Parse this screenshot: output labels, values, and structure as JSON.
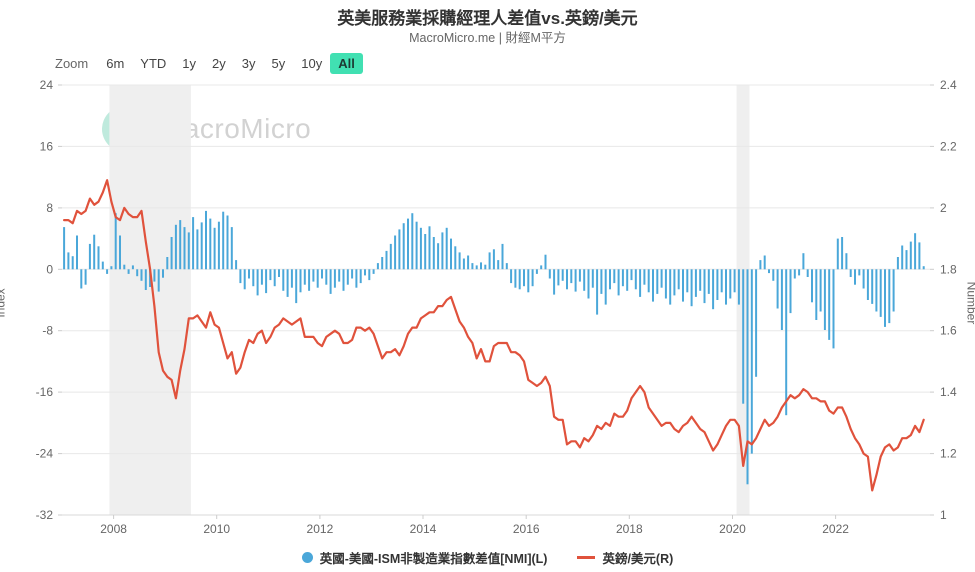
{
  "header": {
    "title": "英美服務業採購經理人差值vs.英鎊/美元",
    "subtitle": "MacroMicro.me | 財經M平方"
  },
  "toolbar": {
    "zoom_label": "Zoom",
    "ranges": [
      "6m",
      "YTD",
      "1y",
      "2y",
      "3y",
      "5y",
      "10y",
      "All"
    ],
    "active_range": "All"
  },
  "watermark": {
    "brand": "MacroMicro"
  },
  "colors": {
    "bars": "#4aa7d9",
    "line": "#e0523c",
    "active_button": "#41e0b2",
    "recession_band": "#efefef",
    "gridline": "#e8e8e8",
    "axis_line": "#d9d9d9",
    "tick_text": "#666666",
    "title_text": "#333333"
  },
  "legend": {
    "items": [
      {
        "label": "英國-美國-ISM非製造業指數差值[NMI](L)",
        "marker": "circle",
        "color": "#4aa7d9"
      },
      {
        "label": "英鎊/美元(R)",
        "marker": "line",
        "color": "#e0523c"
      }
    ]
  },
  "chart_data": {
    "type": "bar+line combo",
    "x_start": 2007.0,
    "x_end": 2023.83,
    "x_ticks": [
      2008,
      2010,
      2012,
      2014,
      2016,
      2018,
      2020,
      2022
    ],
    "y_left": {
      "title": "Index",
      "min": -32,
      "max": 24,
      "ticks": [
        24,
        16,
        8,
        0,
        -8,
        -16,
        -24,
        -32
      ]
    },
    "y_right": {
      "title": "Number",
      "min": 1,
      "max": 2.4,
      "ticks": [
        "2.4",
        "2.2",
        "2",
        "1.8",
        "1.6",
        "1.4",
        "1.2",
        "1"
      ]
    },
    "grid": "horizontal",
    "legend_position": "bottom",
    "recession_bands": [
      [
        2007.92,
        2009.5
      ],
      [
        2020.08,
        2020.33
      ]
    ],
    "start": "2007-01",
    "frequency": "monthly",
    "series": [
      {
        "name": "英國-美國-ISM非製造業指數差值[NMI](L)",
        "type": "bar",
        "axis": "left",
        "color": "#4aa7d9",
        "values": [
          5.5,
          2.2,
          1.7,
          4.4,
          -2.5,
          -2.0,
          3.3,
          4.5,
          3.0,
          1.0,
          -0.6,
          0.4,
          7.3,
          4.4,
          0.6,
          -0.6,
          0.5,
          -0.9,
          -1.5,
          -2.7,
          -2.3,
          -1.6,
          -2.9,
          -1.1,
          1.6,
          4.2,
          5.8,
          6.4,
          5.5,
          4.8,
          6.8,
          5.2,
          6.1,
          7.6,
          6.6,
          5.4,
          6.2,
          7.5,
          7.0,
          5.5,
          1.2,
          -1.8,
          -2.6,
          -1.2,
          -2.2,
          -3.4,
          -2.0,
          -3.1,
          -1.4,
          -2.2,
          -1.0,
          -2.8,
          -3.6,
          -2.4,
          -4.4,
          -3.0,
          -2.0,
          -2.8,
          -1.6,
          -2.4,
          -1.2,
          -2.0,
          -3.2,
          -2.4,
          -1.6,
          -2.8,
          -2.0,
          -1.2,
          -2.4,
          -1.8,
          -0.8,
          -1.4,
          -0.6,
          0.8,
          1.6,
          2.4,
          3.3,
          4.4,
          5.2,
          6.0,
          6.6,
          7.3,
          6.2,
          5.4,
          4.6,
          5.6,
          4.2,
          3.4,
          4.8,
          5.4,
          4.0,
          3.0,
          2.2,
          1.4,
          1.8,
          0.8,
          0.5,
          0.9,
          0.6,
          2.2,
          2.6,
          1.2,
          3.3,
          0.8,
          -1.8,
          -2.4,
          -2.6,
          -2.2,
          -3.0,
          -2.2,
          -0.6,
          0.5,
          1.9,
          -1.2,
          -3.3,
          -2.1,
          -1.5,
          -2.6,
          -1.8,
          -2.9,
          -1.6,
          -2.8,
          -3.8,
          -2.4,
          -5.9,
          -3.2,
          -4.6,
          -2.6,
          -1.8,
          -3.4,
          -2.2,
          -2.8,
          -1.4,
          -2.6,
          -3.6,
          -2.0,
          -3.0,
          -4.2,
          -3.2,
          -2.4,
          -3.8,
          -4.6,
          -3.4,
          -2.6,
          -4.2,
          -3.0,
          -4.8,
          -3.6,
          -2.8,
          -4.4,
          -3.2,
          -5.2,
          -4.0,
          -3.0,
          -4.6,
          -3.8,
          -3.0,
          -4.6,
          -17.5,
          -28.0,
          -24.0,
          -14.0,
          1.2,
          1.8,
          -0.5,
          -1.5,
          -5.1,
          -7.9,
          -19.0,
          -5.7,
          -1.2,
          -0.8,
          2.1,
          -1.0,
          -4.3,
          -6.6,
          -5.5,
          -7.9,
          -9.2,
          -10.3,
          4.0,
          4.2,
          2.1,
          -1.0,
          -2.0,
          -0.8,
          -2.5,
          -4.0,
          -4.5,
          -5.5,
          -6.2,
          -7.5,
          -7.0,
          -5.5,
          1.6,
          3.1,
          2.5,
          3.6,
          4.7,
          3.5,
          0.4
        ]
      },
      {
        "name": "英鎊/美元(R)",
        "type": "line",
        "axis": "right",
        "color": "#e0523c",
        "values": [
          1.96,
          1.96,
          1.95,
          1.99,
          1.98,
          1.99,
          2.03,
          2.01,
          2.02,
          2.05,
          2.09,
          2.02,
          1.97,
          1.96,
          2.0,
          1.98,
          1.97,
          1.97,
          1.99,
          1.89,
          1.8,
          1.68,
          1.53,
          1.47,
          1.45,
          1.44,
          1.38,
          1.47,
          1.54,
          1.64,
          1.64,
          1.65,
          1.63,
          1.61,
          1.66,
          1.62,
          1.61,
          1.56,
          1.51,
          1.53,
          1.46,
          1.48,
          1.53,
          1.57,
          1.56,
          1.59,
          1.6,
          1.56,
          1.58,
          1.61,
          1.62,
          1.64,
          1.63,
          1.62,
          1.63,
          1.64,
          1.58,
          1.58,
          1.58,
          1.56,
          1.55,
          1.58,
          1.59,
          1.6,
          1.59,
          1.56,
          1.56,
          1.57,
          1.61,
          1.61,
          1.6,
          1.61,
          1.59,
          1.55,
          1.51,
          1.53,
          1.53,
          1.54,
          1.52,
          1.55,
          1.59,
          1.61,
          1.61,
          1.64,
          1.65,
          1.66,
          1.66,
          1.68,
          1.68,
          1.7,
          1.71,
          1.67,
          1.63,
          1.61,
          1.58,
          1.56,
          1.51,
          1.54,
          1.5,
          1.5,
          1.55,
          1.56,
          1.56,
          1.56,
          1.53,
          1.53,
          1.52,
          1.5,
          1.44,
          1.43,
          1.42,
          1.43,
          1.45,
          1.42,
          1.32,
          1.31,
          1.31,
          1.23,
          1.24,
          1.24,
          1.22,
          1.25,
          1.24,
          1.26,
          1.29,
          1.28,
          1.3,
          1.29,
          1.33,
          1.32,
          1.32,
          1.34,
          1.38,
          1.4,
          1.42,
          1.4,
          1.35,
          1.33,
          1.31,
          1.29,
          1.3,
          1.3,
          1.28,
          1.27,
          1.29,
          1.3,
          1.32,
          1.3,
          1.28,
          1.27,
          1.24,
          1.21,
          1.23,
          1.26,
          1.29,
          1.31,
          1.31,
          1.29,
          1.16,
          1.24,
          1.23,
          1.25,
          1.28,
          1.31,
          1.29,
          1.3,
          1.32,
          1.35,
          1.37,
          1.39,
          1.38,
          1.39,
          1.41,
          1.4,
          1.38,
          1.38,
          1.37,
          1.37,
          1.34,
          1.33,
          1.35,
          1.35,
          1.32,
          1.28,
          1.25,
          1.23,
          1.2,
          1.19,
          1.08,
          1.13,
          1.19,
          1.22,
          1.23,
          1.21,
          1.22,
          1.25,
          1.25,
          1.26,
          1.29,
          1.27,
          1.31
        ]
      }
    ]
  }
}
